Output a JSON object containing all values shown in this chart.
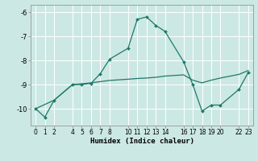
{
  "xlabel": "Humidex (Indice chaleur)",
  "bg_color": "#cce8e4",
  "grid_color": "#ffffff",
  "line_color": "#1c7a6a",
  "xlim": [
    -0.5,
    23.5
  ],
  "ylim": [
    -10.7,
    -5.7
  ],
  "yticks": [
    -10,
    -9,
    -8,
    -7,
    -6
  ],
  "xticks": [
    0,
    1,
    2,
    4,
    5,
    6,
    7,
    8,
    10,
    11,
    12,
    13,
    14,
    16,
    17,
    18,
    19,
    20,
    22,
    23
  ],
  "curve1_x": [
    0,
    1,
    2,
    4,
    5,
    6,
    7,
    8,
    10,
    11,
    12,
    13,
    14,
    16,
    17,
    18,
    19,
    20,
    22,
    23
  ],
  "curve1_y": [
    -10.0,
    -10.35,
    -9.65,
    -9.0,
    -9.0,
    -8.95,
    -8.55,
    -7.95,
    -7.5,
    -6.3,
    -6.2,
    -6.55,
    -6.8,
    -8.05,
    -9.0,
    -10.1,
    -9.85,
    -9.85,
    -9.2,
    -8.5
  ],
  "curve2_x": [
    0,
    2,
    4,
    5,
    6,
    7,
    8,
    10,
    11,
    12,
    13,
    14,
    16,
    17,
    18,
    19,
    20,
    22,
    23
  ],
  "curve2_y": [
    -10.0,
    -9.65,
    -9.0,
    -8.97,
    -8.93,
    -8.88,
    -8.83,
    -8.78,
    -8.75,
    -8.73,
    -8.7,
    -8.65,
    -8.6,
    -8.82,
    -8.93,
    -8.82,
    -8.73,
    -8.58,
    -8.42
  ]
}
